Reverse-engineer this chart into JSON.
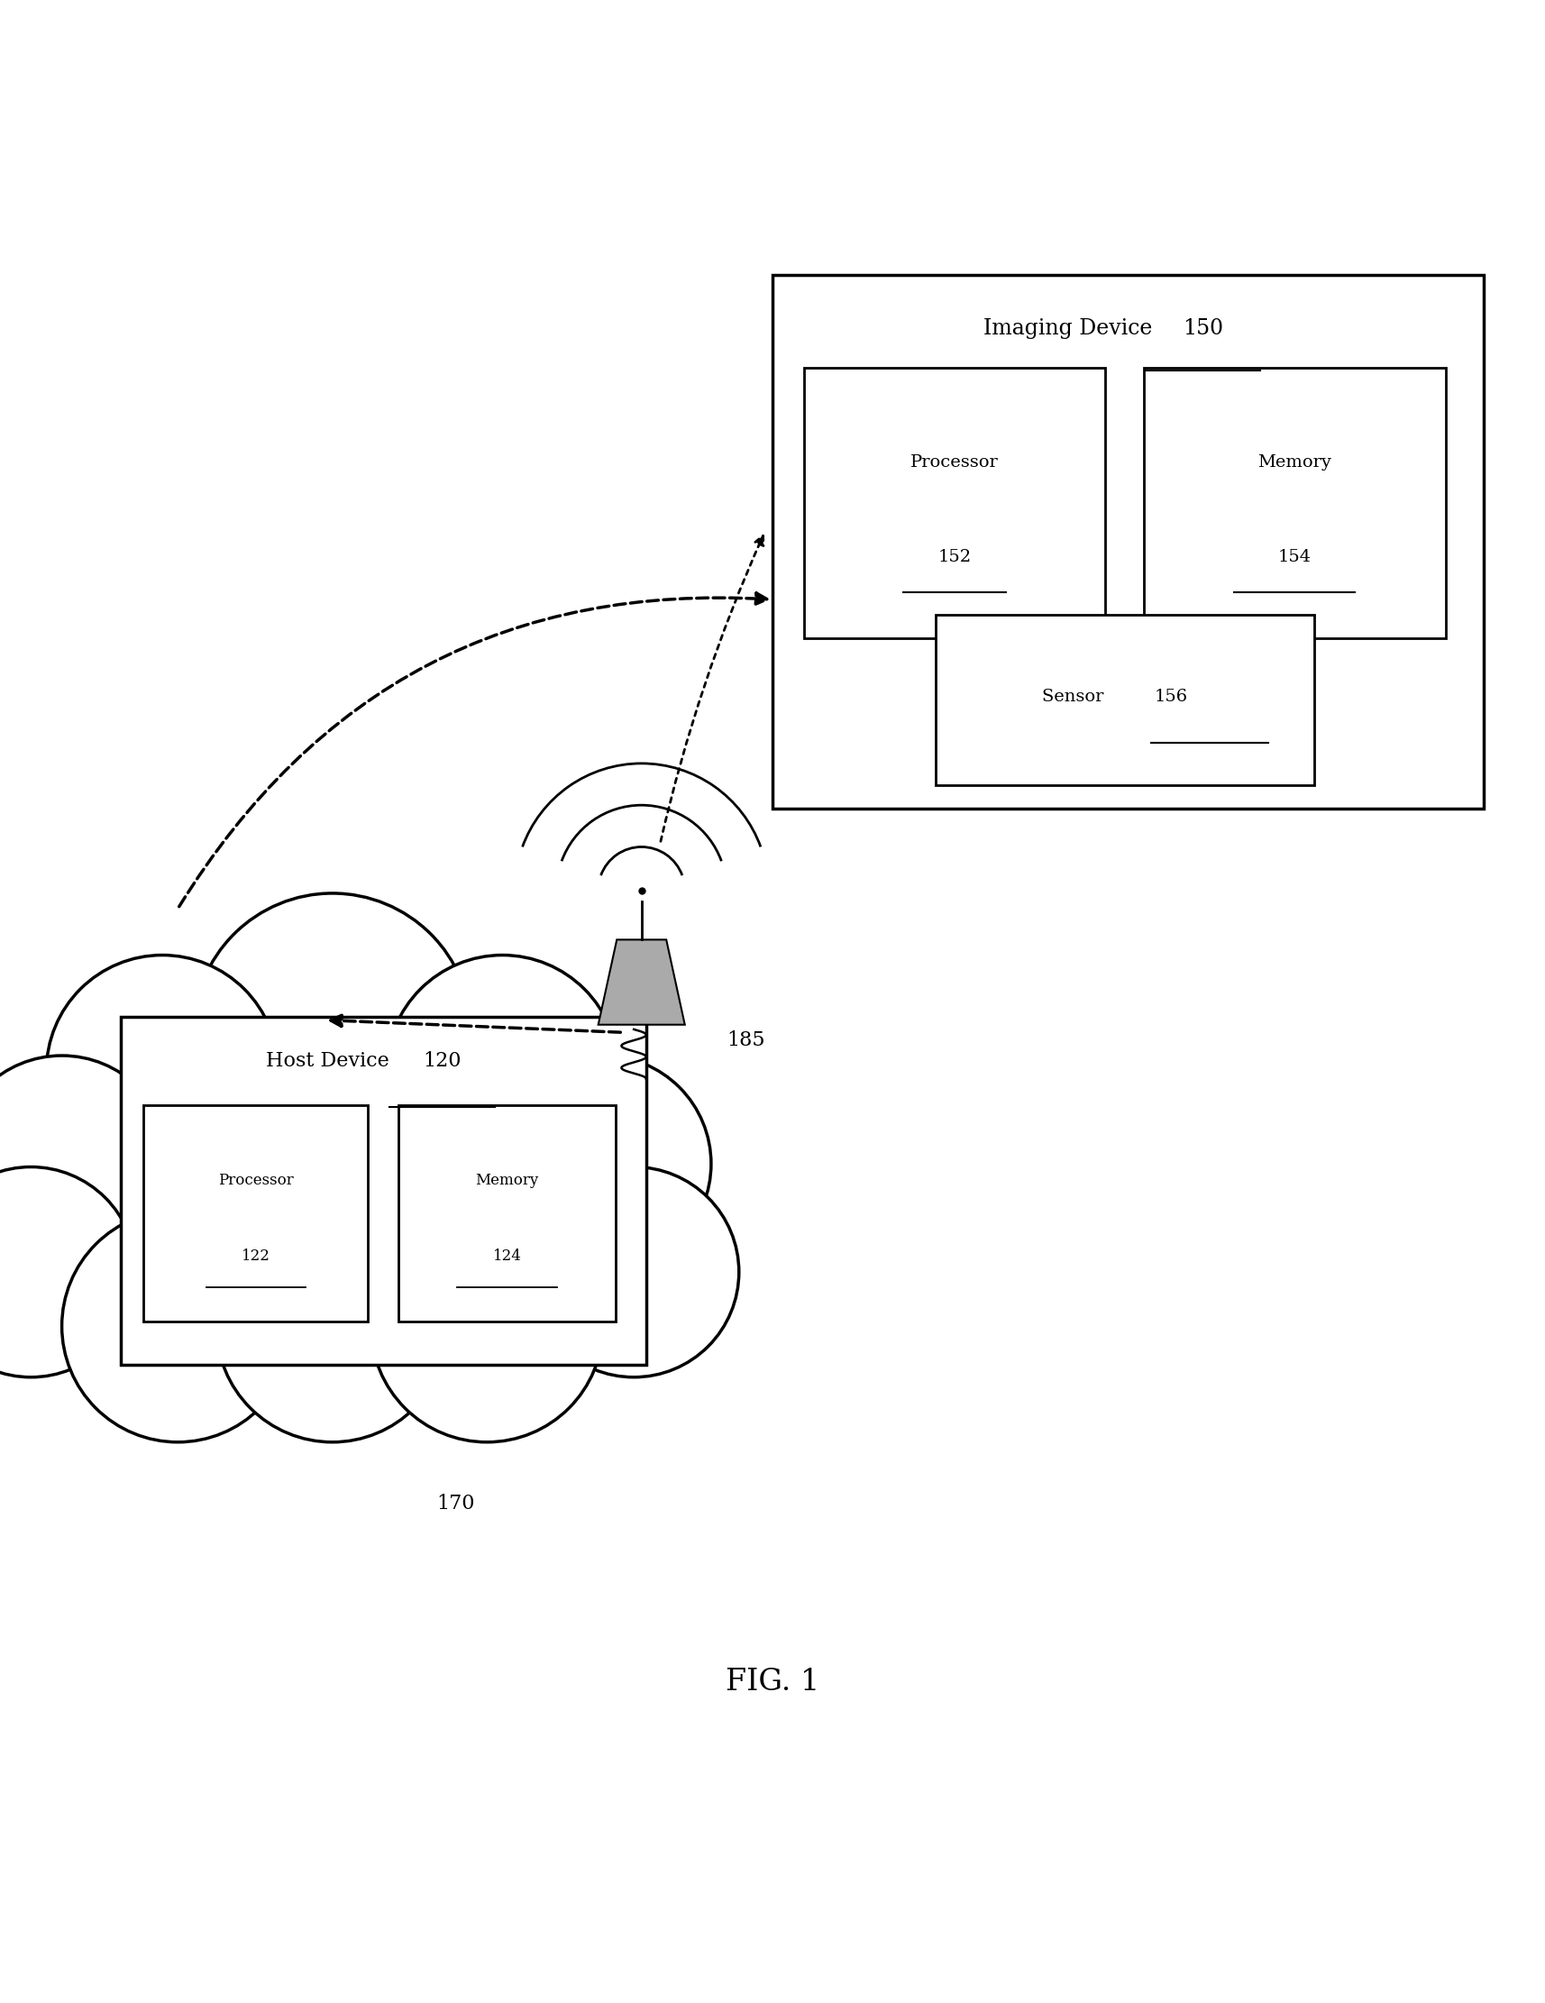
{
  "bg_color": "#ffffff",
  "fig_label": "FIG. 1",
  "line_color": "#000000",
  "text_color": "#000000",
  "imaging_device_label": "Imaging Device",
  "imaging_device_number": "150",
  "imaging_processor_label": "Processor",
  "imaging_processor_number": "152",
  "imaging_memory_label": "Memory",
  "imaging_memory_number": "154",
  "imaging_sensor_label": "Sensor",
  "imaging_sensor_number": "156",
  "host_device_label": "Host Device",
  "host_device_number": "120",
  "host_processor_label": "Processor",
  "host_processor_number": "122",
  "host_memory_label": "Memory",
  "host_memory_number": "124",
  "cloud_label": "170",
  "antenna_label": "185"
}
